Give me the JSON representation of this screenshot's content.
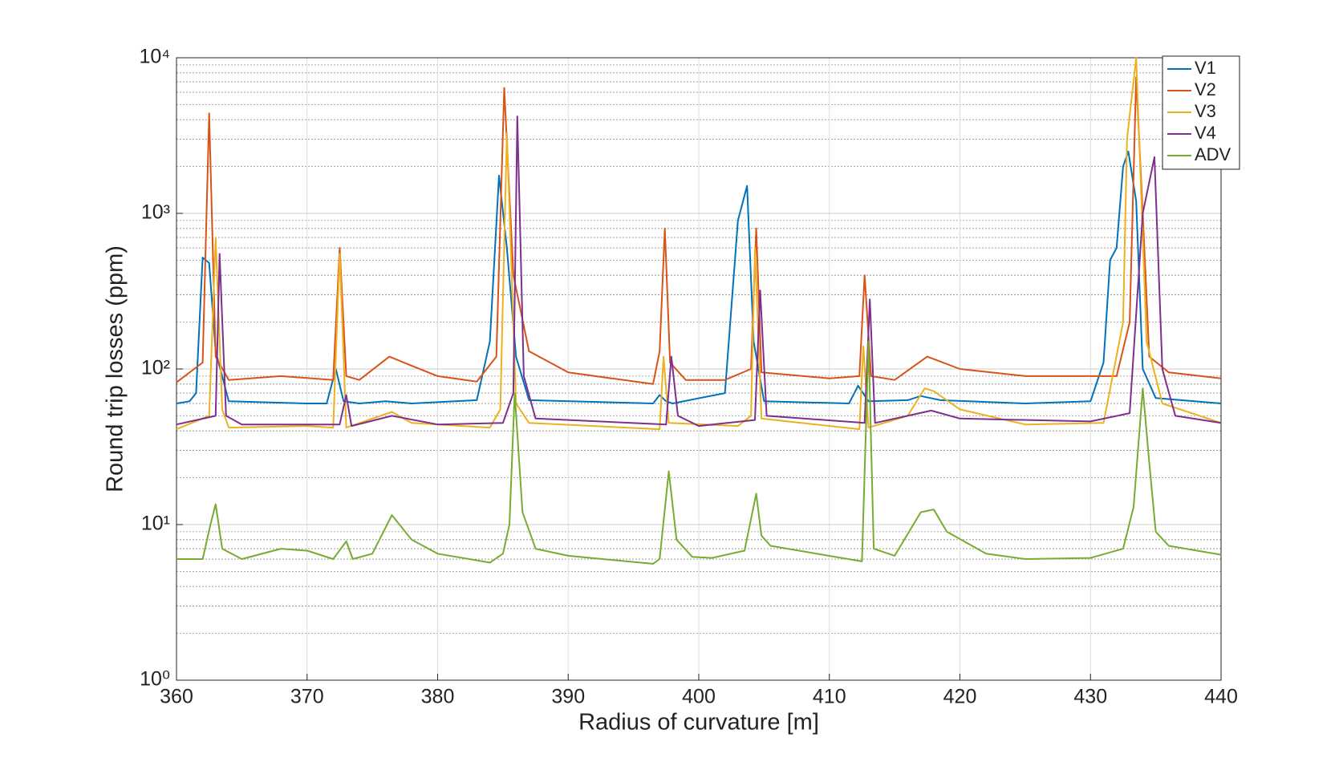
{
  "chart_data": {
    "type": "line",
    "log_y": true,
    "grid": true,
    "minor_grid": true,
    "legend": "upper right",
    "x_label": "Radius of curvature [m]",
    "y_label": "Round trip losses (ppm)",
    "xlim": [
      360,
      440
    ],
    "xticks": [
      360,
      370,
      380,
      390,
      400,
      410,
      420,
      430,
      440
    ],
    "ylim": [
      1,
      10000
    ],
    "yticks": [
      {
        "value": 1,
        "label": "10⁰"
      },
      {
        "value": 10,
        "label": "10¹"
      },
      {
        "value": 100,
        "label": "10²"
      },
      {
        "value": 1000,
        "label": "10³"
      },
      {
        "value": 10000,
        "label": "10⁴"
      }
    ],
    "series": [
      {
        "name": "V1",
        "color": "#0072bd",
        "x": [
          360,
          361,
          361.5,
          362,
          362.5,
          363,
          364,
          370,
          371.5,
          372.2,
          372.8,
          374,
          376,
          378,
          383,
          384,
          384.7,
          385.3,
          386,
          387,
          396.5,
          397,
          397.5,
          398,
          402,
          403,
          403.7,
          404.2,
          405,
          411.5,
          412.2,
          413,
          416,
          417,
          418.5,
          425,
          430,
          431,
          431.5,
          432,
          432.5,
          432.9,
          433.5,
          434,
          435,
          440
        ],
        "values": [
          60,
          62,
          70,
          520,
          480,
          130,
          62,
          60,
          60,
          100,
          62,
          60,
          62,
          60,
          63,
          150,
          1750,
          600,
          120,
          63,
          60,
          68,
          62,
          60,
          70,
          900,
          1500,
          150,
          62,
          60,
          78,
          62,
          63,
          67,
          63,
          60,
          62,
          110,
          500,
          600,
          2000,
          2500,
          1200,
          100,
          65,
          60
        ]
      },
      {
        "name": "V2",
        "color": "#d95319",
        "x": [
          360,
          362,
          362.5,
          363,
          364,
          368,
          372,
          372.5,
          373,
          374,
          376.3,
          378,
          380,
          383,
          384.5,
          385.1,
          385.8,
          387,
          390,
          396.5,
          397,
          397.4,
          397.8,
          399,
          402,
          404,
          404.4,
          404.8,
          410,
          412.3,
          412.7,
          413.2,
          415,
          417.5,
          420,
          425,
          432,
          433,
          433.5,
          434,
          434.5,
          436,
          440
        ],
        "values": [
          82,
          110,
          4400,
          120,
          85,
          90,
          85,
          600,
          90,
          85,
          120,
          105,
          90,
          83,
          120,
          6400,
          400,
          130,
          95,
          80,
          130,
          800,
          110,
          85,
          85,
          100,
          800,
          95,
          87,
          90,
          400,
          90,
          85,
          120,
          100,
          90,
          90,
          200,
          7500,
          1000,
          120,
          95,
          87
        ]
      },
      {
        "name": "V3",
        "color": "#edb120",
        "x": [
          360,
          362.5,
          363,
          363.5,
          364,
          370,
          372,
          372.5,
          373,
          376.5,
          378,
          384,
          384.8,
          385.3,
          386,
          387,
          397,
          397.3,
          397.7,
          403,
          404,
          404.3,
          404.8,
          412.3,
          412.6,
          413,
          416,
          417.3,
          418,
          420,
          425,
          431,
          432.5,
          432.8,
          433.5,
          434.3,
          435.5,
          440
        ],
        "values": [
          41,
          50,
          700,
          55,
          42,
          43,
          42,
          550,
          42,
          53,
          45,
          42,
          55,
          3300,
          60,
          45,
          41,
          120,
          45,
          43,
          50,
          600,
          48,
          41,
          140,
          42,
          50,
          75,
          72,
          55,
          44,
          45,
          200,
          3000,
          10000,
          150,
          60,
          45
        ]
      },
      {
        "name": "V4",
        "color": "#7e2f8e",
        "x": [
          360,
          363,
          363.3,
          363.8,
          365,
          372.5,
          373,
          373.4,
          376.5,
          380,
          385,
          385.8,
          386.1,
          386.6,
          387.5,
          397.5,
          397.9,
          398.4,
          400,
          404.3,
          404.7,
          405.2,
          412.7,
          413.1,
          413.5,
          417.8,
          420,
          430,
          433,
          434,
          434.9,
          435.5,
          436.5,
          440
        ],
        "values": [
          44,
          50,
          550,
          50,
          44,
          44,
          68,
          43,
          50,
          44,
          45,
          70,
          4200,
          90,
          48,
          44,
          120,
          50,
          43,
          47,
          320,
          50,
          45,
          280,
          45,
          54,
          48,
          46,
          52,
          1000,
          2300,
          100,
          50,
          45
        ]
      },
      {
        "name": "ADV",
        "color": "#77ac30",
        "x": [
          360,
          362,
          362.6,
          363,
          363.5,
          365,
          368,
          370,
          372,
          373,
          373.5,
          375,
          376.5,
          378,
          380,
          384,
          385,
          385.5,
          385.9,
          386.5,
          387.5,
          390,
          396.5,
          397,
          397.7,
          398.3,
          399.5,
          401,
          403.5,
          404.4,
          404.8,
          405.5,
          412.5,
          413,
          413.4,
          415,
          417,
          418,
          419,
          422,
          425,
          430,
          432.5,
          433.3,
          434,
          434.5,
          435,
          436,
          440
        ],
        "values": [
          6,
          6,
          10,
          13.5,
          7,
          6,
          7,
          6.8,
          6,
          7.8,
          6,
          6.5,
          11.5,
          8,
          6.5,
          5.7,
          6.5,
          10,
          70,
          12,
          7,
          6.3,
          5.6,
          6,
          22,
          8,
          6.2,
          6.1,
          6.8,
          15.8,
          8.5,
          7.3,
          5.8,
          150,
          7,
          6.3,
          12,
          12.5,
          9,
          6.5,
          6,
          6.1,
          7,
          13,
          75,
          25,
          9,
          7.3,
          6.4
        ]
      }
    ]
  }
}
